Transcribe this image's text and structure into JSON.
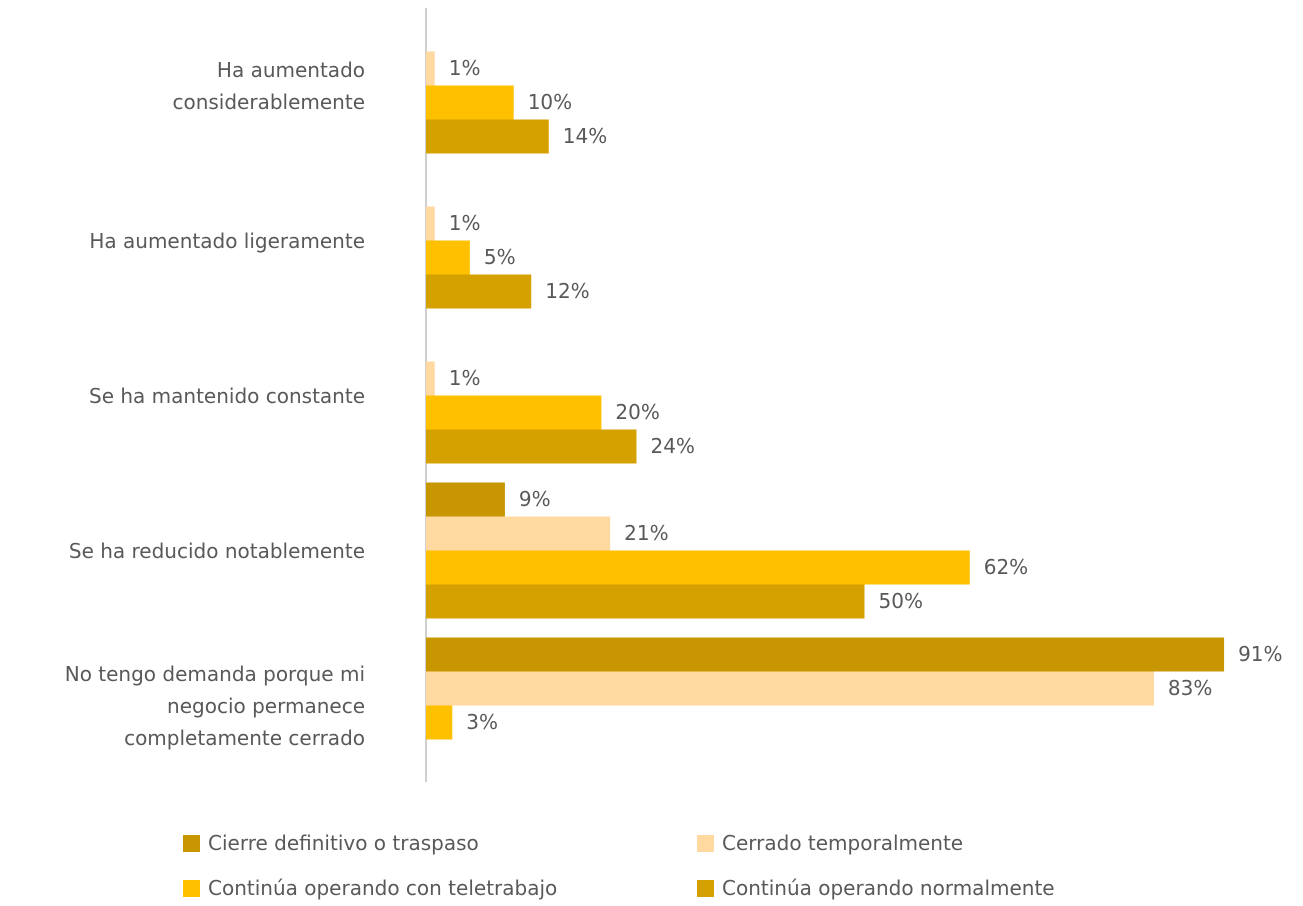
{
  "chart_data": {
    "type": "bar",
    "orientation": "horizontal",
    "categories": [
      "Ha aumentado\nconsiderablemente",
      "Ha aumentado ligeramente",
      "Se ha mantenido constante",
      "Se ha reducido notablemente",
      "No tengo demanda porque mi\nnegocio permanece\ncompletamente cerrado"
    ],
    "xlim": [
      0,
      100
    ],
    "series": [
      {
        "name": "Cierre definitivo o traspaso",
        "color": "#c89600",
        "values": [
          null,
          null,
          null,
          9,
          91
        ],
        "value_labels": [
          null,
          null,
          null,
          "9%",
          "91%"
        ]
      },
      {
        "name": "Cerrado temporalmente",
        "color": "#ffd9a0",
        "values": [
          1,
          1,
          1,
          21,
          83
        ],
        "value_labels": [
          "1%",
          "1%",
          "1%",
          "21%",
          "83%"
        ]
      },
      {
        "name": "Continúa operando con teletrabajo",
        "color": "#ffc000",
        "values": [
          10,
          5,
          20,
          62,
          3
        ],
        "value_labels": [
          "10%",
          "5%",
          "20%",
          "62%",
          "3%"
        ]
      },
      {
        "name": "Continúa operando normalmente",
        "color": "#d4a100",
        "values": [
          14,
          12,
          24,
          50,
          null
        ],
        "value_labels": [
          "14%",
          "12%",
          "24%",
          "50%",
          null
        ]
      }
    ],
    "legend": "bottom"
  }
}
